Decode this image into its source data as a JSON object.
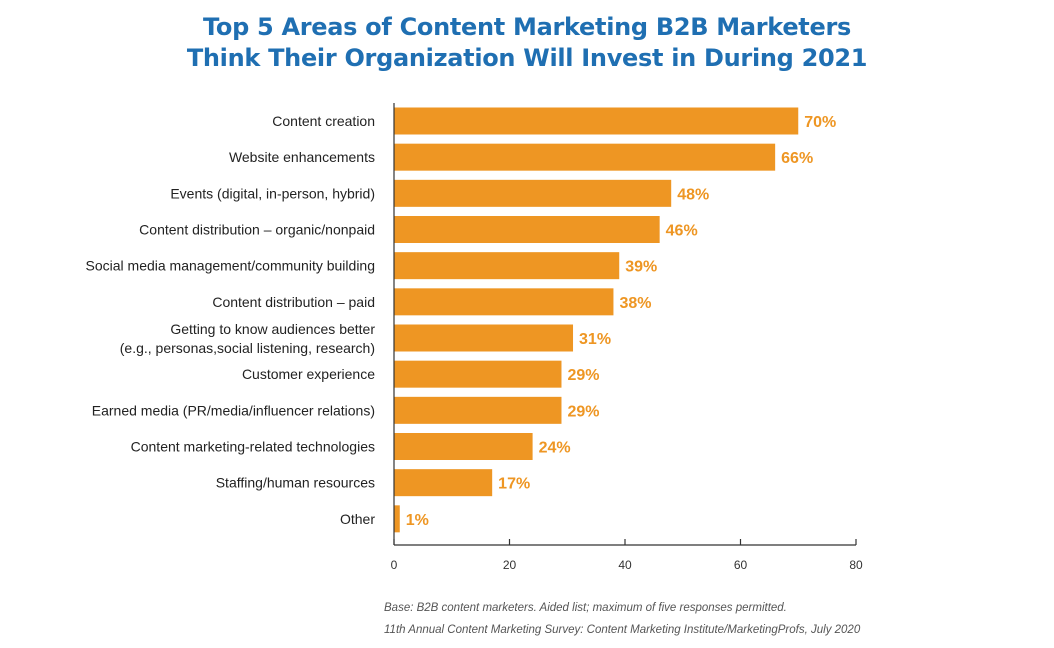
{
  "title": {
    "line1": "Top 5 Areas of Content Marketing B2B Marketers",
    "line2": "Think Their Organization Will Invest in During 2021"
  },
  "chart_data": {
    "type": "bar",
    "orientation": "horizontal",
    "categories": [
      "Content creation",
      "Website enhancements",
      "Events (digital, in-person, hybrid)",
      "Content distribution – organic/nonpaid",
      "Social media management/community building",
      "Content distribution – paid",
      "Getting to know audiences better\n(e.g., personas,social listening, research)",
      "Customer experience",
      "Earned media (PR/media/influencer relations)",
      "Content marketing-related technologies",
      "Staffing/human resources",
      "Other"
    ],
    "values": [
      70,
      66,
      48,
      46,
      39,
      38,
      31,
      29,
      29,
      24,
      17,
      1
    ],
    "value_labels": [
      "70%",
      "66%",
      "48%",
      "46%",
      "39%",
      "38%",
      "31%",
      "29%",
      "29%",
      "24%",
      "17%",
      "1%"
    ],
    "xlim": [
      0,
      80
    ],
    "x_ticks": [
      0,
      20,
      40,
      60,
      80
    ],
    "grid": false,
    "bar_color": "#ee9623",
    "label_color": "#ee9623"
  },
  "footnotes": {
    "base": "Base: B2B content marketers. Aided list; maximum of five responses permitted.",
    "source": "11th Annual Content Marketing Survey: Content Marketing Institute/MarketingProfs, July 2020"
  }
}
